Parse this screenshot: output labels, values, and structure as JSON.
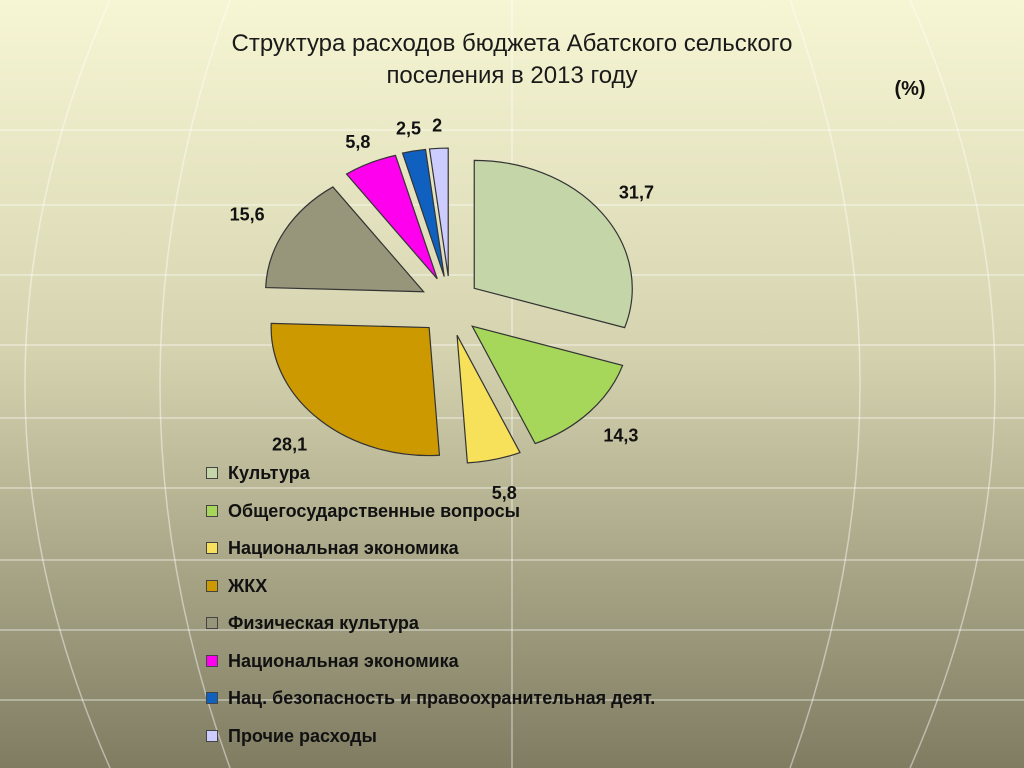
{
  "title": {
    "line1": "Структура расходов бюджета Абатского сельского",
    "line2": "поселения в 2013 году"
  },
  "unit_label": "(%)",
  "chart_data": {
    "type": "pie",
    "legend_position": "bottom",
    "exploded": true,
    "slices": [
      {
        "label": "Культура",
        "value": 31.7,
        "value_label": "31,7",
        "color": "#c4d6a8"
      },
      {
        "label": "Общегосударственные вопросы",
        "value": 14.3,
        "value_label": "14,3",
        "color": "#a6d65a"
      },
      {
        "label": "Национальная экономика",
        "value": 5.8,
        "value_label": "5,8",
        "color": "#f7e05a"
      },
      {
        "label": "ЖКХ",
        "value": 28.1,
        "value_label": "28,1",
        "color": "#cc9a00"
      },
      {
        "label": "Физическая культура",
        "value": 15.6,
        "value_label": "15,6",
        "color": "#97957a"
      },
      {
        "label": "Национальная экономика",
        "value": 5.8,
        "value_label": "5,8",
        "color": "#ff00ee"
      },
      {
        "label": "Нац. безопасность и правоохранительная деят.",
        "value": 2.5,
        "value_label": "2,5",
        "color": "#1060c0"
      },
      {
        "label": "Прочие расходы",
        "value": 2,
        "value_label": "2",
        "color": "#ccccff"
      }
    ]
  }
}
